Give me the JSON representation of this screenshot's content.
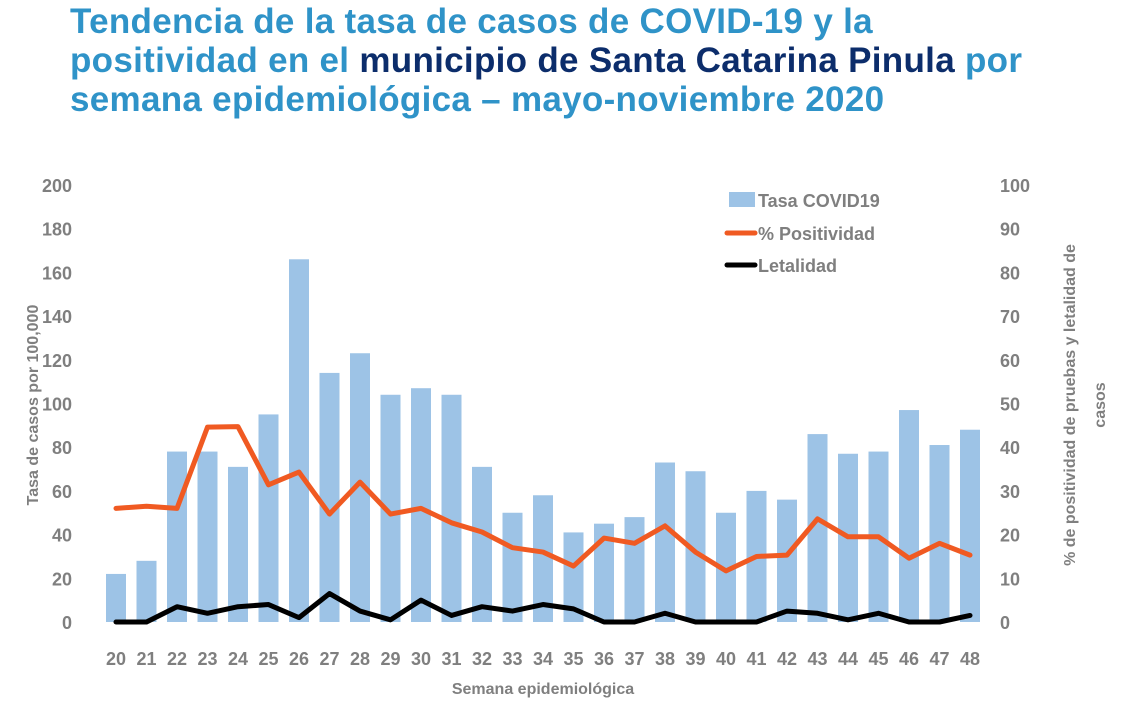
{
  "title": {
    "part1": "Tendencia de la tasa de casos de COVID-19 y la positividad en el ",
    "part2": "municipio de Santa Catarina Pinula",
    "part3": " por semana epidemiológica – mayo-noviembre 2020"
  },
  "colors": {
    "title": "#2f93c8",
    "title_highlight": "#0c2d6b",
    "bars": "#9dc3e6",
    "positividad": "#f05a22",
    "letalidad": "#000000",
    "text": "#7f7f7f"
  },
  "chart_data": {
    "type": "bar",
    "xlabel": "Semana epidemiológica",
    "ylabel": "Tasa de casos por 100,000",
    "y2label_lines": [
      "% de positividad de pruebas y letalidad de",
      "casos"
    ],
    "ylim": [
      0,
      200
    ],
    "y2lim": [
      0,
      100
    ],
    "yticks": [
      0,
      20,
      40,
      60,
      80,
      100,
      120,
      140,
      160,
      180,
      200
    ],
    "y2ticks": [
      0,
      10,
      20,
      30,
      40,
      50,
      60,
      70,
      80,
      90,
      100
    ],
    "legend_position": "top-right",
    "categories": [
      "20",
      "21",
      "22",
      "23",
      "24",
      "25",
      "26",
      "27",
      "28",
      "29",
      "30",
      "31",
      "32",
      "33",
      "34",
      "35",
      "36",
      "37",
      "38",
      "39",
      "40",
      "41",
      "42",
      "43",
      "44",
      "45",
      "46",
      "47",
      "48"
    ],
    "series": [
      {
        "name": "Tasa COVID19",
        "type": "bar",
        "axis": "left",
        "values": [
          22,
          28,
          78,
          78,
          71,
          95,
          166,
          114,
          123,
          104,
          107,
          104,
          71,
          50,
          58,
          41,
          45,
          48,
          73,
          69,
          50,
          60,
          56,
          86,
          77,
          78,
          97,
          81,
          88
        ]
      },
      {
        "name": "% Positividad",
        "type": "line",
        "axis": "right",
        "values": [
          26,
          26.5,
          26,
          44.6,
          44.7,
          31.4,
          34.3,
          24.7,
          32,
          24.7,
          26,
          22.7,
          20.6,
          17,
          16,
          12.8,
          19.2,
          18,
          22,
          16,
          11.7,
          15,
          15.3,
          23.6,
          19.5,
          19.5,
          14.6,
          18,
          15.3
        ]
      },
      {
        "name": "Letalidad",
        "type": "line",
        "axis": "right",
        "values": [
          0,
          0,
          3.5,
          2,
          3.5,
          4,
          1,
          6.5,
          2.5,
          0.5,
          5,
          1.5,
          3.5,
          2.5,
          4,
          3,
          0,
          0,
          2,
          0,
          0,
          0,
          2.5,
          2,
          0.5,
          2,
          0,
          0,
          1.5
        ]
      }
    ]
  }
}
